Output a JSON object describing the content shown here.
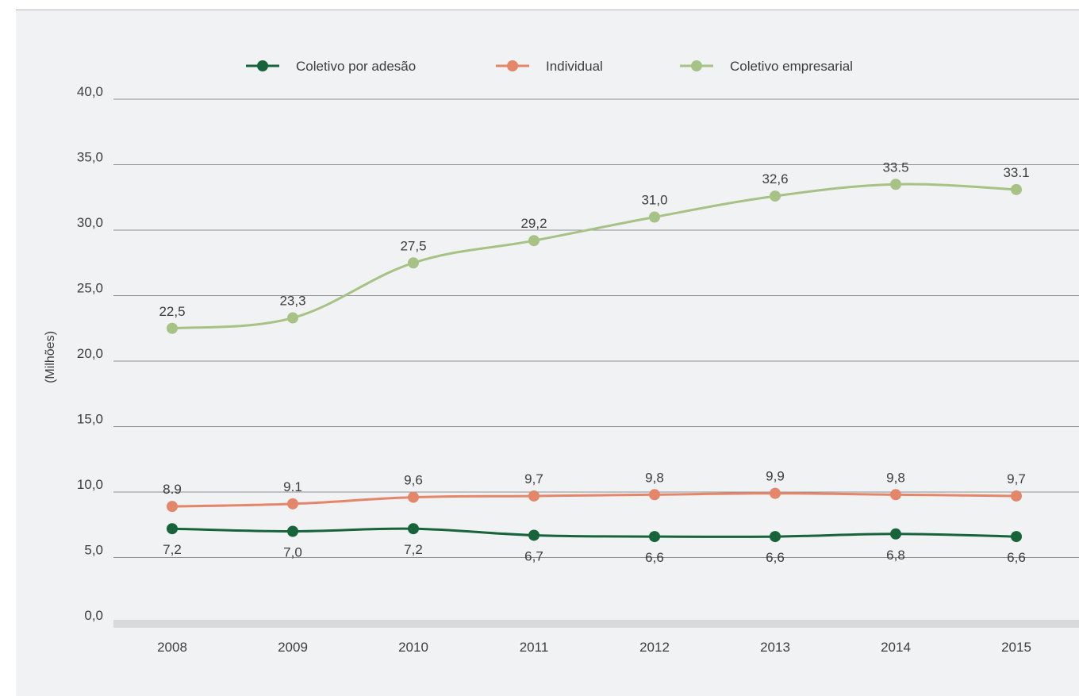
{
  "chart_data": {
    "type": "line",
    "title": "",
    "xlabel": "",
    "ylabel": "(Milhões)",
    "ylim": [
      0,
      40
    ],
    "yticks": [
      "0,0",
      "5,0",
      "10,0",
      "15,0",
      "20,0",
      "25,0",
      "30,0",
      "35,0",
      "40,0"
    ],
    "categories": [
      "2008",
      "2009",
      "2010",
      "2011",
      "2012",
      "2013",
      "2014",
      "2015"
    ],
    "grid": true,
    "legend_position": "top",
    "series": [
      {
        "name": "Coletivo por adesão",
        "color": "#17633a",
        "values": [
          7.2,
          7.0,
          7.2,
          6.7,
          6.6,
          6.6,
          6.8,
          6.6
        ],
        "labels": [
          "7,2",
          "7,0",
          "7,2",
          "6,7",
          "6,6",
          "6,6",
          "6,8",
          "6,6"
        ],
        "label_position": "below"
      },
      {
        "name": "Individual",
        "color": "#e3866a",
        "values": [
          8.9,
          9.1,
          9.6,
          9.7,
          9.8,
          9.9,
          9.8,
          9.7
        ],
        "labels": [
          "8.9",
          "9.1",
          "9,6",
          "9,7",
          "9,8",
          "9,9",
          "9,8",
          "9,7"
        ],
        "label_position": "above"
      },
      {
        "name": "Coletivo empresarial",
        "color": "#a6c285",
        "values": [
          22.5,
          23.3,
          27.5,
          29.2,
          31.0,
          32.6,
          33.5,
          33.1
        ],
        "labels": [
          "22,5",
          "23,3",
          "27,5",
          "29,2",
          "31,0",
          "32,6",
          "33.5",
          "33.1"
        ],
        "label_position": "above"
      }
    ]
  }
}
